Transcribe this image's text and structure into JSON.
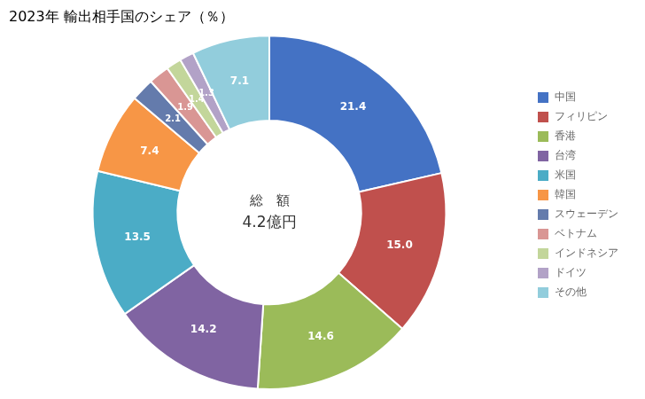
{
  "chart_data": {
    "type": "doughnut",
    "title": "2023年 輸出相手国のシェア（％）",
    "annotations": [
      "総　額",
      "4.2億円"
    ],
    "categories": [
      "中国",
      "フィリピン",
      "香港",
      "台湾",
      "米国",
      "韓国",
      "スウェーデン",
      "ベトナム",
      "インドネシア",
      "ドイツ",
      "その他"
    ],
    "values": [
      21.4,
      15.0,
      14.6,
      14.2,
      13.5,
      7.4,
      2.1,
      1.9,
      1.4,
      1.3,
      7.1
    ],
    "value_labels": [
      "21.4",
      "15.0",
      "14.6",
      "14.2",
      "13.5",
      "7.4",
      "2.1",
      "1.9",
      "1.4",
      "1.3",
      "7.1"
    ],
    "colors": [
      "#4472C4",
      "#C0504D",
      "#9BBB59",
      "#8064A2",
      "#4BACC6",
      "#F79646",
      "#647BAC",
      "#D99694",
      "#C3D69B",
      "#B2A2C7",
      "#92CDDC"
    ],
    "data_labels": true,
    "legend": "right"
  }
}
